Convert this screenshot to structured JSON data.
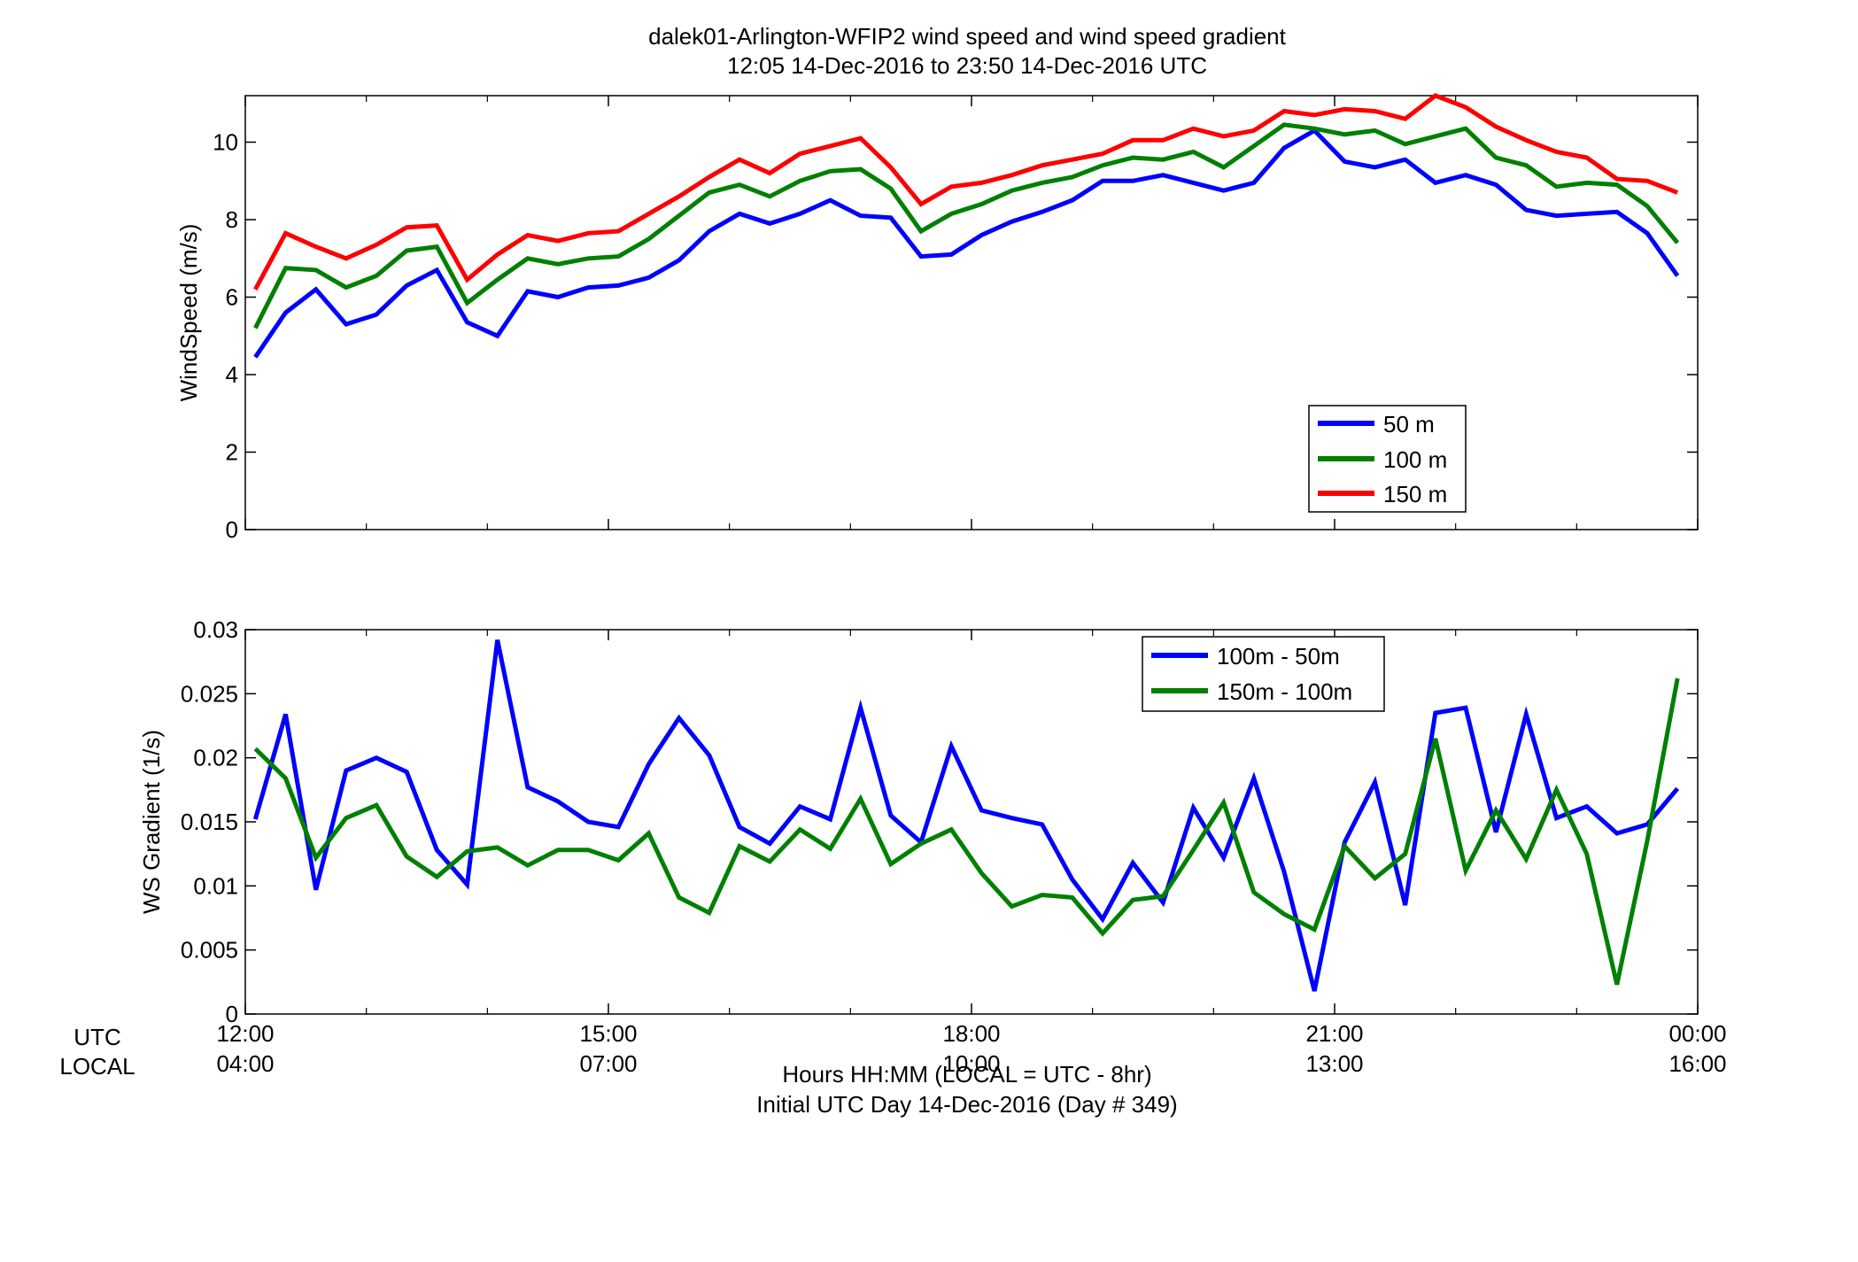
{
  "figure": {
    "title_line1": "dalek01-Arlington-WFIP2  wind speed and wind speed gradient",
    "title_line2": "12:05 14-Dec-2016 to 23:50 14-Dec-2016  UTC",
    "row_label_utc": "UTC",
    "row_label_local": "LOCAL",
    "xlabel_line1": "Hours HH:MM  (LOCAL = UTC - 8hr)",
    "xlabel_line2": "Initial UTC Day 14-Dec-2016 (Day # 349)",
    "xticks_utc": [
      "12:00",
      "15:00",
      "18:00",
      "21:00",
      "00:00"
    ],
    "xticks_local": [
      "04:00",
      "07:00",
      "10:00",
      "13:00",
      "16:00"
    ]
  },
  "chart_data": [
    {
      "type": "line",
      "ylabel": "WindSpeed (m/s)",
      "xlim": [
        12,
        24
      ],
      "ylim": [
        0,
        11.2
      ],
      "yticks": [
        "0",
        "2",
        "4",
        "6",
        "8",
        "10"
      ],
      "x_units": "hours UTC",
      "legend_placement": "lower-right",
      "grid": false,
      "x": [
        12.083,
        12.333,
        12.583,
        12.833,
        13.083,
        13.333,
        13.583,
        13.833,
        14.083,
        14.333,
        14.583,
        14.833,
        15.083,
        15.333,
        15.583,
        15.833,
        16.083,
        16.333,
        16.583,
        16.833,
        17.083,
        17.333,
        17.583,
        17.833,
        18.083,
        18.333,
        18.583,
        18.833,
        19.083,
        19.333,
        19.583,
        19.833,
        20.083,
        20.333,
        20.583,
        20.833,
        21.083,
        21.333,
        21.583,
        21.833,
        22.083,
        22.333,
        22.583,
        22.833,
        23.083,
        23.333,
        23.583,
        23.833
      ],
      "series": [
        {
          "name": "50 m",
          "color": "#0000ff",
          "values": [
            4.45,
            5.6,
            6.2,
            5.3,
            5.55,
            6.3,
            6.7,
            5.35,
            5.0,
            6.15,
            6.0,
            6.25,
            6.3,
            6.5,
            6.95,
            7.7,
            8.15,
            7.9,
            8.15,
            8.5,
            8.1,
            8.05,
            7.05,
            7.1,
            7.6,
            7.95,
            8.2,
            8.5,
            9.0,
            9.0,
            9.15,
            8.95,
            8.75,
            8.95,
            9.85,
            10.3,
            9.5,
            9.35,
            9.55,
            8.95,
            9.15,
            8.9,
            8.25,
            8.1,
            8.15,
            8.2,
            7.65,
            6.55
          ]
        },
        {
          "name": "100 m",
          "color": "#008000",
          "values": [
            5.2,
            6.75,
            6.7,
            6.25,
            6.55,
            7.2,
            7.3,
            5.85,
            6.45,
            7.0,
            6.85,
            7.0,
            7.05,
            7.5,
            8.1,
            8.7,
            8.9,
            8.6,
            9.0,
            9.25,
            9.3,
            8.8,
            7.7,
            8.15,
            8.4,
            8.75,
            8.95,
            9.1,
            9.4,
            9.6,
            9.55,
            9.75,
            9.35,
            9.9,
            10.45,
            10.35,
            10.2,
            10.3,
            9.95,
            10.15,
            10.35,
            9.6,
            9.4,
            8.85,
            8.95,
            8.9,
            8.35,
            7.4
          ]
        },
        {
          "name": "150 m",
          "color": "#ff0000",
          "values": [
            6.2,
            7.65,
            7.3,
            7.0,
            7.35,
            7.8,
            7.85,
            6.45,
            7.1,
            7.6,
            7.45,
            7.65,
            7.7,
            8.15,
            8.6,
            9.1,
            9.55,
            9.2,
            9.7,
            9.9,
            10.1,
            9.35,
            8.4,
            8.85,
            8.95,
            9.15,
            9.4,
            9.55,
            9.7,
            10.05,
            10.05,
            10.35,
            10.15,
            10.3,
            10.8,
            10.7,
            10.85,
            10.8,
            10.6,
            11.2,
            10.9,
            10.4,
            10.05,
            9.75,
            9.6,
            9.05,
            9.0,
            8.7
          ]
        }
      ]
    },
    {
      "type": "line",
      "ylabel": "WS Gradient (1/s)",
      "xlim": [
        12,
        24
      ],
      "ylim": [
        0,
        0.03
      ],
      "yticks": [
        "0",
        "0.005",
        "0.01",
        "0.015",
        "0.02",
        "0.025",
        "0.03"
      ],
      "x_units": "hours UTC",
      "legend_placement": "top-right",
      "grid": false,
      "x": [
        12.083,
        12.333,
        12.583,
        12.833,
        13.083,
        13.333,
        13.583,
        13.833,
        14.083,
        14.333,
        14.583,
        14.833,
        15.083,
        15.333,
        15.583,
        15.833,
        16.083,
        16.333,
        16.583,
        16.833,
        17.083,
        17.333,
        17.583,
        17.833,
        18.083,
        18.333,
        18.583,
        18.833,
        19.083,
        19.333,
        19.583,
        19.833,
        20.083,
        20.333,
        20.583,
        20.833,
        21.083,
        21.333,
        21.583,
        21.833,
        22.083,
        22.333,
        22.583,
        22.833,
        23.083,
        23.333,
        23.583,
        23.833
      ],
      "series": [
        {
          "name": "100m - 50m",
          "color": "#0000ff",
          "values": [
            0.0152,
            0.0234,
            0.0097,
            0.019,
            0.02,
            0.0189,
            0.0128,
            0.0101,
            0.0292,
            0.0177,
            0.0166,
            0.015,
            0.0146,
            0.0195,
            0.0231,
            0.0202,
            0.0146,
            0.0133,
            0.0162,
            0.0152,
            0.0239,
            0.0155,
            0.0134,
            0.0209,
            0.0159,
            0.0153,
            0.0148,
            0.0105,
            0.0074,
            0.0118,
            0.0087,
            0.0161,
            0.0122,
            0.0184,
            0.0111,
            0.0018,
            0.0134,
            0.0181,
            0.0085,
            0.0235,
            0.0239,
            0.0142,
            0.0234,
            0.0153,
            0.0162,
            0.0141,
            0.0148,
            0.0176
          ]
        },
        {
          "name": "150m - 100m",
          "color": "#008000",
          "values": [
            0.0207,
            0.0184,
            0.0122,
            0.0153,
            0.0163,
            0.0123,
            0.0107,
            0.0127,
            0.013,
            0.0116,
            0.0128,
            0.0128,
            0.012,
            0.0141,
            0.0091,
            0.0079,
            0.0131,
            0.0119,
            0.0144,
            0.0129,
            0.0168,
            0.0117,
            0.0133,
            0.0144,
            0.011,
            0.0084,
            0.0093,
            0.0091,
            0.0063,
            0.0089,
            0.0092,
            0.0128,
            0.0165,
            0.0095,
            0.0078,
            0.0066,
            0.0131,
            0.0106,
            0.0125,
            0.0215,
            0.0112,
            0.0159,
            0.0121,
            0.0175,
            0.0125,
            0.0023,
            0.0135,
            0.0262
          ]
        }
      ]
    }
  ]
}
